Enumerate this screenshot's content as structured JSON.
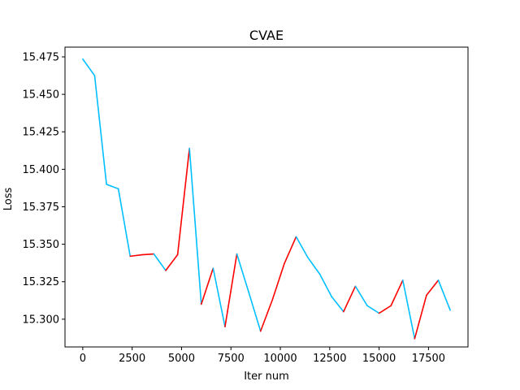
{
  "chart_data": {
    "type": "line",
    "title": "CVAE",
    "xlabel": "Iter num",
    "ylabel": "Loss",
    "xlim": [
      -900,
      19500
    ],
    "ylim": [
      15.2815,
      15.4815
    ],
    "xticks": [
      0,
      2500,
      5000,
      7500,
      10000,
      12500,
      15000,
      17500
    ],
    "xtick_labels": [
      "0",
      "2500",
      "5000",
      "7500",
      "10000",
      "12500",
      "15000",
      "17500"
    ],
    "yticks": [
      15.3,
      15.325,
      15.35,
      15.375,
      15.4,
      15.425,
      15.45,
      15.475
    ],
    "ytick_labels": [
      "15.300",
      "15.325",
      "15.350",
      "15.375",
      "15.400",
      "15.425",
      "15.450",
      "15.475"
    ],
    "grid": false,
    "legend": "none",
    "x": [
      0,
      600,
      1200,
      1800,
      2400,
      3000,
      3600,
      4200,
      4800,
      5400,
      6000,
      6600,
      7200,
      7800,
      8400,
      9000,
      9600,
      10200,
      10800,
      11400,
      12000,
      12600,
      13200,
      13800,
      14400,
      15000,
      15600,
      16200,
      16800,
      17400,
      18000,
      18600
    ],
    "y": [
      15.4735,
      15.4625,
      15.39,
      15.387,
      15.342,
      15.343,
      15.3435,
      15.3325,
      15.343,
      15.414,
      15.31,
      15.334,
      15.295,
      15.3435,
      15.318,
      15.292,
      15.313,
      15.337,
      15.355,
      15.341,
      15.33,
      15.315,
      15.305,
      15.322,
      15.309,
      15.304,
      15.309,
      15.326,
      15.287,
      15.316,
      15.326,
      15.306
    ],
    "segment_colors": {
      "decreasing": "#00bfff",
      "increasing": "#ff0000"
    }
  }
}
